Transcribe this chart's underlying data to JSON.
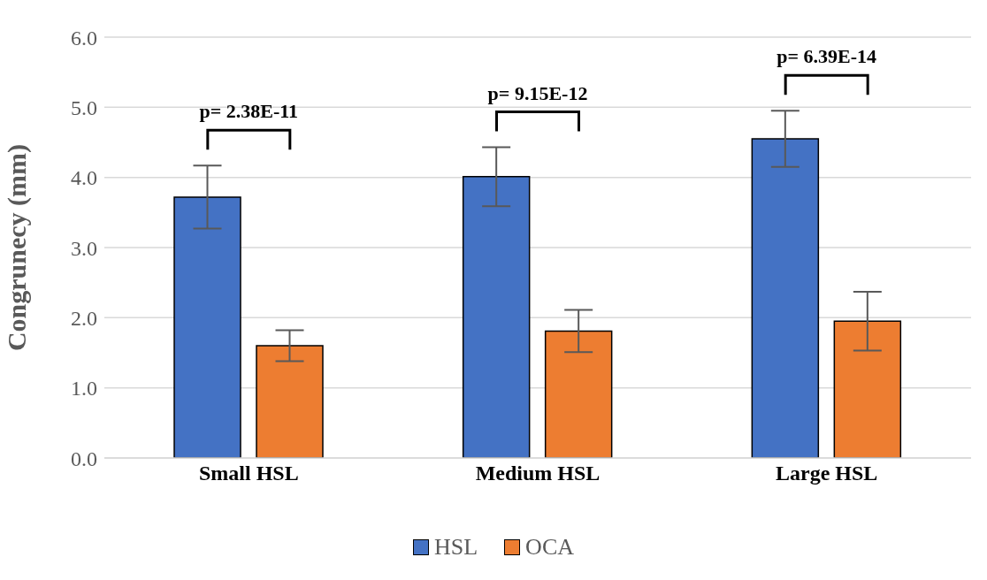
{
  "chart_data": {
    "type": "bar",
    "ylabel": "Congrunecy (mm)",
    "categories": [
      "Small HSL",
      "Medium HSL",
      "Large HSL"
    ],
    "series": [
      {
        "name": "HSL",
        "color": "#4472c4",
        "values": [
          3.72,
          4.01,
          4.55
        ],
        "errors": [
          0.45,
          0.42,
          0.4
        ]
      },
      {
        "name": "OCA",
        "color": "#ed7d31",
        "values": [
          1.6,
          1.81,
          1.95
        ],
        "errors": [
          0.22,
          0.3,
          0.42
        ]
      }
    ],
    "ylim": [
      0,
      6
    ],
    "yticks": [
      {
        "value": 0,
        "label": "0.0"
      },
      {
        "value": 1,
        "label": "1.0"
      },
      {
        "value": 2,
        "label": "2.0"
      },
      {
        "value": 3,
        "label": "3.0"
      },
      {
        "value": 4,
        "label": "4.0"
      },
      {
        "value": 5,
        "label": "5.0"
      },
      {
        "value": 6,
        "label": "6.0"
      }
    ],
    "grid": "y",
    "legend": "bottom",
    "annotations": [
      "p= 2.38E-11",
      "p= 9.15E-12",
      "p= 6.39E-14"
    ]
  }
}
